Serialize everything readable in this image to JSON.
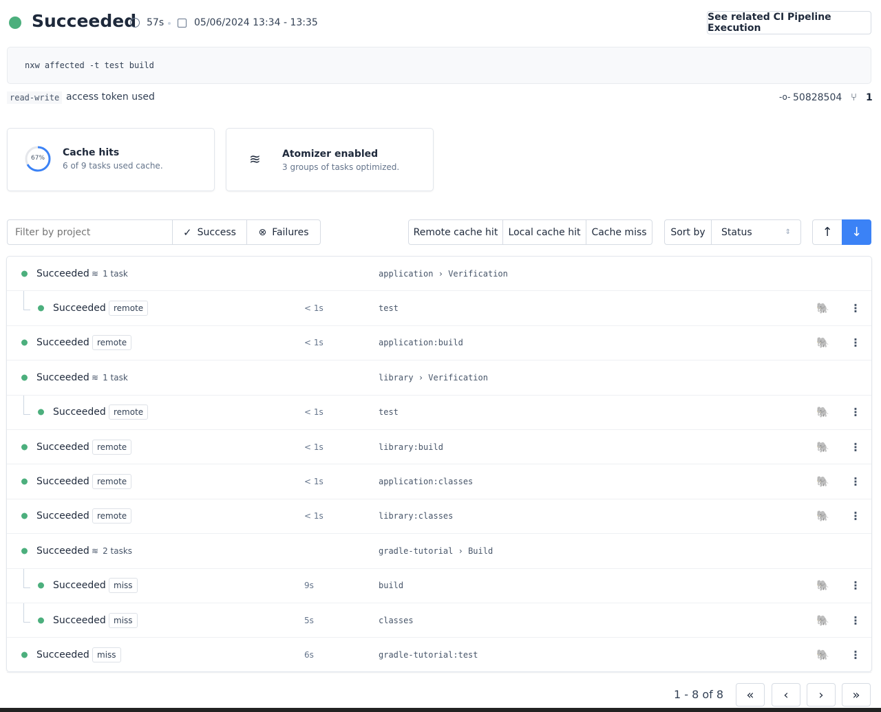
{
  "header": {
    "status": "Succeeded",
    "duration": "57s",
    "datetime": "05/06/2024 13:34 - 13:35",
    "ci_button": "See related CI Pipeline Execution",
    "status_color": "#4caf7d"
  },
  "command": "nxw affected -t test build",
  "token": {
    "code": "read-write",
    "text": "access token used"
  },
  "commit": {
    "sha": "50828504",
    "branches": "1"
  },
  "cards": {
    "cache": {
      "percent": "67%",
      "title": "Cache hits",
      "desc": "6 of 9 tasks used cache.",
      "fraction": 0.67
    },
    "atomizer": {
      "title": "Atomizer enabled",
      "desc": "3 groups of tasks optimized."
    }
  },
  "filters": {
    "placeholder": "Filter by project",
    "success": "Success",
    "failures": "Failures",
    "remote": "Remote cache hit",
    "local": "Local cache hit",
    "miss": "Cache miss",
    "sort_label": "Sort by",
    "sort_value": "Status"
  },
  "rows": [
    {
      "level": 0,
      "status": "Succeeded",
      "group": "1 task",
      "project": "application",
      "target": "Verification"
    },
    {
      "level": 1,
      "status": "Succeeded",
      "cache": "remote",
      "duration": "< 1s",
      "target": "test"
    },
    {
      "level": 0,
      "status": "Succeeded",
      "cache": "remote",
      "duration": "< 1s",
      "target": "application:build"
    },
    {
      "level": 0,
      "status": "Succeeded",
      "group": "1 task",
      "project": "library",
      "target": "Verification"
    },
    {
      "level": 1,
      "status": "Succeeded",
      "cache": "remote",
      "duration": "< 1s",
      "target": "test"
    },
    {
      "level": 0,
      "status": "Succeeded",
      "cache": "remote",
      "duration": "< 1s",
      "target": "library:build"
    },
    {
      "level": 0,
      "status": "Succeeded",
      "cache": "remote",
      "duration": "< 1s",
      "target": "application:classes"
    },
    {
      "level": 0,
      "status": "Succeeded",
      "cache": "remote",
      "duration": "< 1s",
      "target": "library:classes"
    },
    {
      "level": 0,
      "status": "Succeeded",
      "group": "2 tasks",
      "project": "gradle-tutorial",
      "target": "Build"
    },
    {
      "level": 1,
      "status": "Succeeded",
      "cache": "miss",
      "duration": "9s",
      "target": "build"
    },
    {
      "level": 1,
      "status": "Succeeded",
      "cache": "miss",
      "duration": "5s",
      "target": "classes"
    },
    {
      "level": 0,
      "status": "Succeeded",
      "cache": "miss",
      "duration": "6s",
      "target": "gradle-tutorial:test"
    }
  ],
  "pagination": {
    "range": "1 - 8 of 8"
  }
}
